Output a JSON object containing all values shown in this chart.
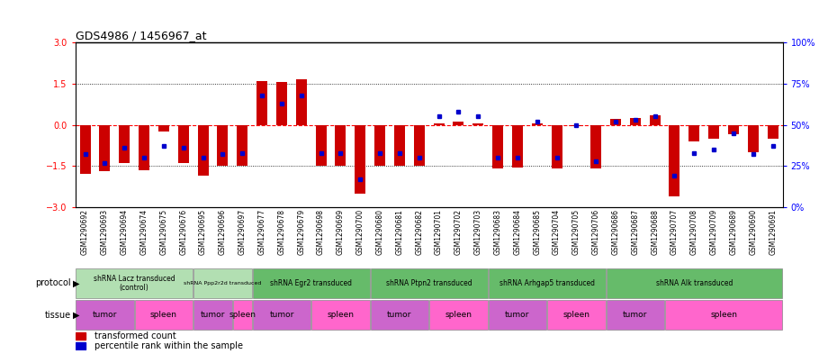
{
  "title": "GDS4986 / 1456967_at",
  "samples": [
    "GSM1290692",
    "GSM1290693",
    "GSM1290694",
    "GSM1290674",
    "GSM1290675",
    "GSM1290676",
    "GSM1290695",
    "GSM1290696",
    "GSM1290697",
    "GSM1290677",
    "GSM1290678",
    "GSM1290679",
    "GSM1290698",
    "GSM1290699",
    "GSM1290700",
    "GSM1290680",
    "GSM1290681",
    "GSM1290682",
    "GSM1290701",
    "GSM1290702",
    "GSM1290703",
    "GSM1290683",
    "GSM1290684",
    "GSM1290685",
    "GSM1290704",
    "GSM1290705",
    "GSM1290706",
    "GSM1290686",
    "GSM1290687",
    "GSM1290688",
    "GSM1290707",
    "GSM1290708",
    "GSM1290709",
    "GSM1290689",
    "GSM1290690",
    "GSM1290691"
  ],
  "red_values": [
    -1.8,
    -1.7,
    -1.4,
    -1.65,
    -0.25,
    -1.4,
    -1.85,
    -1.5,
    -1.5,
    1.6,
    1.55,
    1.65,
    -1.5,
    -1.5,
    -2.5,
    -1.5,
    -1.5,
    -1.5,
    0.05,
    0.1,
    0.05,
    -1.6,
    -1.55,
    0.05,
    -1.6,
    -0.05,
    -1.6,
    0.2,
    0.25,
    0.35,
    -2.6,
    -0.6,
    -0.5,
    -0.35,
    -1.0,
    -0.5
  ],
  "blue_values_pct": [
    32,
    27,
    36,
    30,
    37,
    36,
    30,
    32,
    33,
    68,
    63,
    68,
    33,
    33,
    17,
    33,
    33,
    30,
    55,
    58,
    55,
    30,
    30,
    52,
    30,
    50,
    28,
    52,
    53,
    55,
    19,
    33,
    35,
    45,
    32,
    37
  ],
  "ylim_left": [
    -3,
    3
  ],
  "ylim_right": [
    0,
    100
  ],
  "yticks_left": [
    -3,
    -1.5,
    0,
    1.5,
    3
  ],
  "yticks_right": [
    0,
    25,
    50,
    75,
    100
  ],
  "protocols": [
    {
      "label": "shRNA Lacz transduced\n(control)",
      "start": 0,
      "end": 5,
      "color": "#b2dfb2"
    },
    {
      "label": "shRNA Ppp2r2d transduced",
      "start": 6,
      "end": 8,
      "color": "#b2dfb2"
    },
    {
      "label": "shRNA Egr2 transduced",
      "start": 9,
      "end": 14,
      "color": "#66bb6a"
    },
    {
      "label": "shRNA Ptpn2 transduced",
      "start": 15,
      "end": 20,
      "color": "#66bb6a"
    },
    {
      "label": "shRNA Arhgap5 transduced",
      "start": 21,
      "end": 26,
      "color": "#66bb6a"
    },
    {
      "label": "shRNA Alk transduced",
      "start": 27,
      "end": 35,
      "color": "#66bb6a"
    }
  ],
  "tissues": [
    {
      "label": "tumor",
      "start": 0,
      "end": 2,
      "color": "#cc66cc"
    },
    {
      "label": "spleen",
      "start": 3,
      "end": 5,
      "color": "#ff66cc"
    },
    {
      "label": "tumor",
      "start": 6,
      "end": 7,
      "color": "#cc66cc"
    },
    {
      "label": "spleen",
      "start": 8,
      "end": 8,
      "color": "#ff66cc"
    },
    {
      "label": "tumor",
      "start": 9,
      "end": 11,
      "color": "#cc66cc"
    },
    {
      "label": "spleen",
      "start": 12,
      "end": 14,
      "color": "#ff66cc"
    },
    {
      "label": "tumor",
      "start": 15,
      "end": 17,
      "color": "#cc66cc"
    },
    {
      "label": "spleen",
      "start": 18,
      "end": 20,
      "color": "#ff66cc"
    },
    {
      "label": "tumor",
      "start": 21,
      "end": 23,
      "color": "#cc66cc"
    },
    {
      "label": "spleen",
      "start": 24,
      "end": 26,
      "color": "#ff66cc"
    },
    {
      "label": "tumor",
      "start": 27,
      "end": 29,
      "color": "#cc66cc"
    },
    {
      "label": "spleen",
      "start": 30,
      "end": 35,
      "color": "#ff66cc"
    }
  ],
  "bar_color": "#cc0000",
  "blue_color": "#0000cc",
  "background_color": "#ffffff",
  "label_bg": "#cccccc"
}
